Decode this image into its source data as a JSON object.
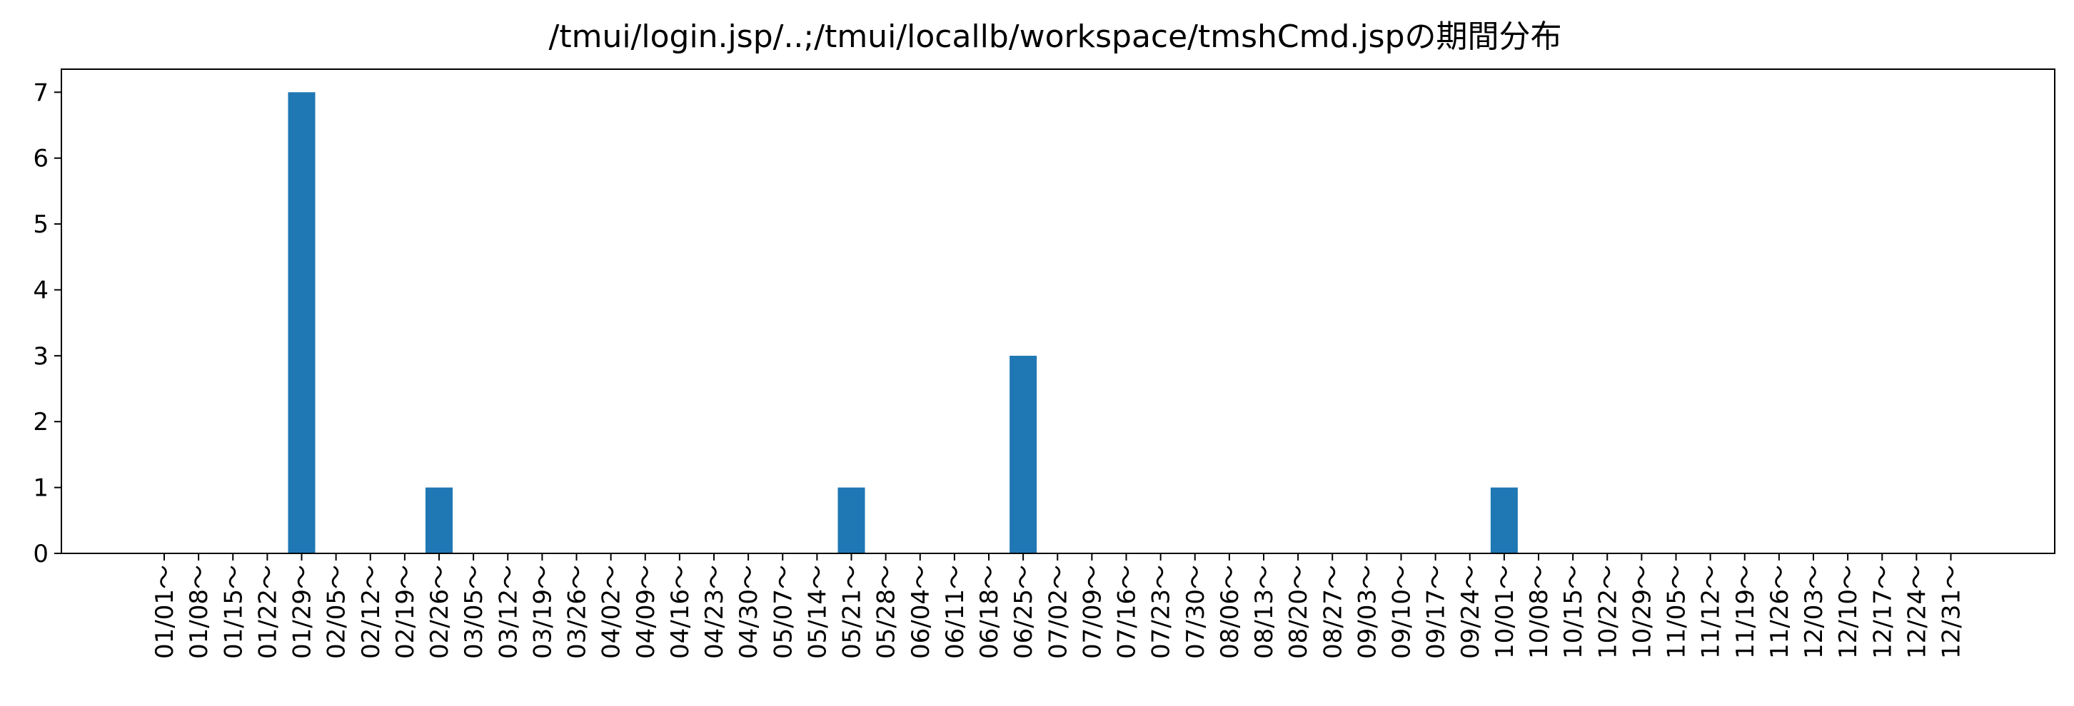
{
  "chart_data": {
    "type": "bar",
    "title": "/tmui/login.jsp/..;/tmui/locallb/workspace/tmshCmd.jspの期間分布",
    "xlabel": "",
    "ylabel": "",
    "ylim": [
      0,
      7.35
    ],
    "yticks": [
      0,
      1,
      2,
      3,
      4,
      5,
      6,
      7
    ],
    "grid": false,
    "legend": "none",
    "bar_color": "#1f77b4",
    "categories": [
      "01/01～",
      "01/08～",
      "01/15～",
      "01/22～",
      "01/29～",
      "02/05～",
      "02/12～",
      "02/19～",
      "02/26～",
      "03/05～",
      "03/12～",
      "03/19～",
      "03/26～",
      "04/02～",
      "04/09～",
      "04/16～",
      "04/23～",
      "04/30～",
      "05/07～",
      "05/14～",
      "05/21～",
      "05/28～",
      "06/04～",
      "06/11～",
      "06/18～",
      "06/25～",
      "07/02～",
      "07/09～",
      "07/16～",
      "07/23～",
      "07/30～",
      "08/06～",
      "08/13～",
      "08/20～",
      "08/27～",
      "09/03～",
      "09/10～",
      "09/17～",
      "09/24～",
      "10/01～",
      "10/08～",
      "10/15～",
      "10/22～",
      "10/29～",
      "11/05～",
      "11/12～",
      "11/19～",
      "11/26～",
      "12/03～",
      "12/10～",
      "12/17～",
      "12/24～",
      "12/31～"
    ],
    "values": [
      0,
      0,
      0,
      0,
      7,
      0,
      0,
      0,
      1,
      0,
      0,
      0,
      0,
      0,
      0,
      0,
      0,
      0,
      0,
      0,
      1,
      0,
      0,
      0,
      0,
      3,
      0,
      0,
      0,
      0,
      0,
      0,
      0,
      0,
      0,
      0,
      0,
      0,
      0,
      1,
      0,
      0,
      0,
      0,
      0,
      0,
      0,
      0,
      0,
      0,
      0,
      0,
      0
    ]
  }
}
